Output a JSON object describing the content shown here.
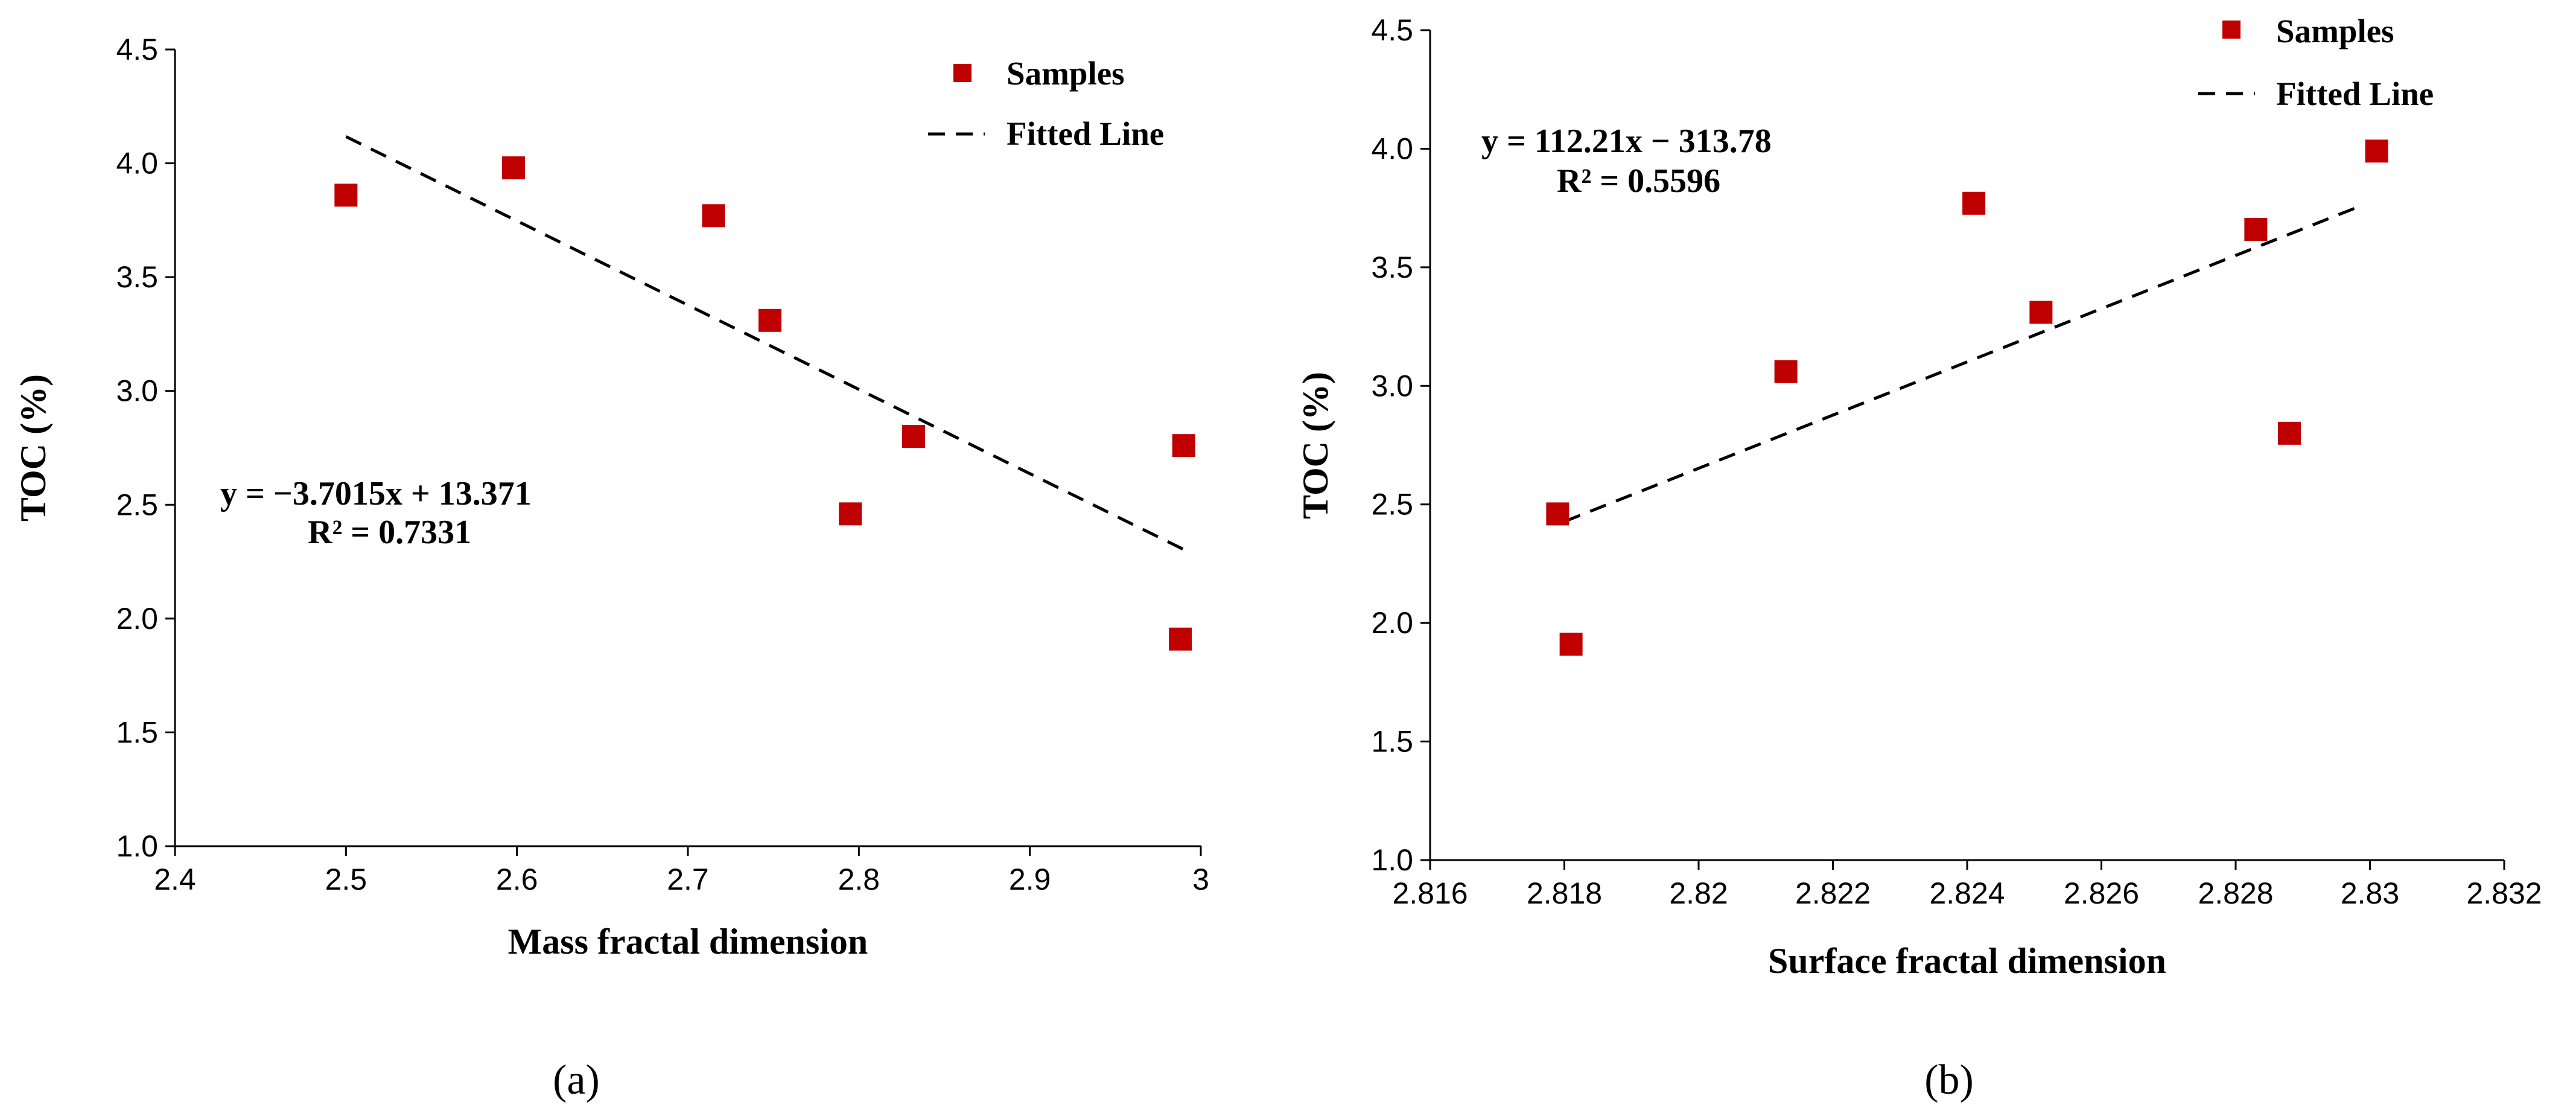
{
  "colors": {
    "marker": "#c00000",
    "fit": "#000000",
    "axis": "#000000"
  },
  "chart_data": [
    {
      "type": "scatter",
      "panel_label": "(a)",
      "xlabel": "Mass fractal dimension",
      "ylabel": "TOC (%)",
      "xlim": [
        2.4,
        3.0
      ],
      "ylim": [
        1.0,
        4.5
      ],
      "x_ticks": [
        2.4,
        2.5,
        2.6,
        2.7,
        2.8,
        2.9,
        3.0
      ],
      "x_tick_labels": [
        "2.4",
        "2.5",
        "2.6",
        "2.7",
        "2.8",
        "2.9",
        "3"
      ],
      "y_ticks": [
        1.0,
        1.5,
        2.0,
        2.5,
        3.0,
        3.5,
        4.0,
        4.5
      ],
      "y_tick_labels": [
        "1.0",
        "1.5",
        "2.0",
        "2.5",
        "3.0",
        "3.5",
        "4.0",
        "4.5"
      ],
      "series": [
        {
          "name": "Samples",
          "points": [
            {
              "x": 2.5,
              "y": 3.86
            },
            {
              "x": 2.598,
              "y": 3.98
            },
            {
              "x": 2.715,
              "y": 3.77
            },
            {
              "x": 2.748,
              "y": 3.31
            },
            {
              "x": 2.795,
              "y": 2.46
            },
            {
              "x": 2.832,
              "y": 2.8
            },
            {
              "x": 2.99,
              "y": 2.76
            },
            {
              "x": 2.988,
              "y": 1.91
            }
          ]
        }
      ],
      "fit": {
        "name": "Fitted Line",
        "slope": -3.7015,
        "intercept": 13.371,
        "x_range": [
          2.5,
          2.99
        ]
      },
      "equation": "y = −3.7015x + 13.371",
      "r2_text": "R² = 0.7331",
      "legend": [
        "Samples",
        "Fitted Line"
      ]
    },
    {
      "type": "scatter",
      "panel_label": "(b)",
      "xlabel": "Surface fractal dimension",
      "ylabel": "TOC (%)",
      "xlim": [
        2.816,
        2.832
      ],
      "ylim": [
        1.0,
        4.5
      ],
      "x_ticks": [
        2.816,
        2.818,
        2.82,
        2.822,
        2.824,
        2.826,
        2.828,
        2.83,
        2.832
      ],
      "x_tick_labels": [
        "2.816",
        "2.818",
        "2.82",
        "2.822",
        "2.824",
        "2.826",
        "2.828",
        "2.83",
        "2.832"
      ],
      "y_ticks": [
        1.0,
        1.5,
        2.0,
        2.5,
        3.0,
        3.5,
        4.0,
        4.5
      ],
      "y_tick_labels": [
        "1.0",
        "1.5",
        "2.0",
        "2.5",
        "3.0",
        "3.5",
        "4.0",
        "4.5"
      ],
      "series": [
        {
          "name": "Samples",
          "points": [
            {
              "x": 2.8179,
              "y": 2.46
            },
            {
              "x": 2.8181,
              "y": 1.91
            },
            {
              "x": 2.8213,
              "y": 3.06
            },
            {
              "x": 2.8241,
              "y": 3.77
            },
            {
              "x": 2.8251,
              "y": 3.31
            },
            {
              "x": 2.8283,
              "y": 3.66
            },
            {
              "x": 2.8288,
              "y": 2.8
            },
            {
              "x": 2.8301,
              "y": 3.99
            }
          ]
        }
      ],
      "fit": {
        "name": "Fitted Line",
        "slope": 112.21,
        "intercept": -313.78,
        "x_range": [
          2.818,
          2.8299
        ]
      },
      "equation": "y = 112.21x − 313.78",
      "r2_text": "R² = 0.5596",
      "legend": [
        "Samples",
        "Fitted Line"
      ]
    }
  ]
}
